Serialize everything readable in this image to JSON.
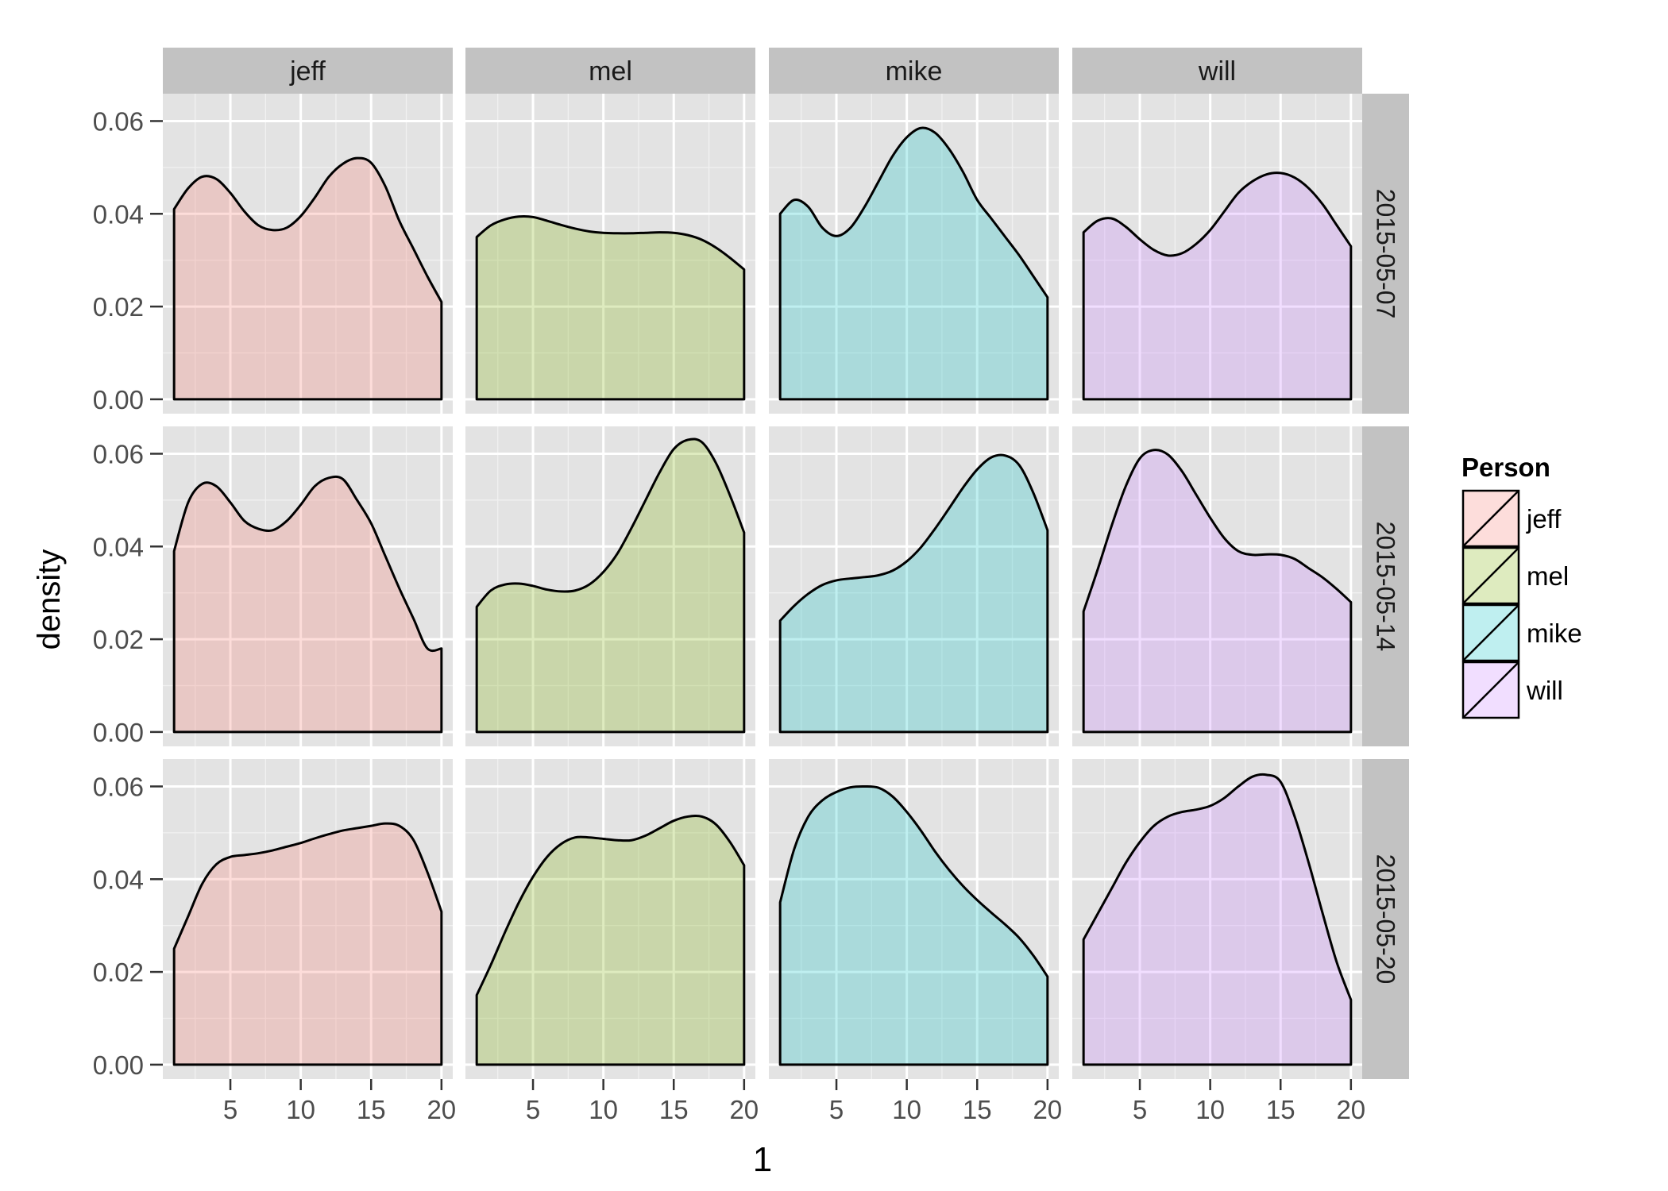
{
  "chart_data": {
    "type": "area",
    "chart_kind": "faceted density plot",
    "xlabel": "1",
    "ylabel": "density",
    "xlim": [
      0.2,
      20.8
    ],
    "ylim": [
      -0.0031,
      0.0659
    ],
    "xticks": [
      5,
      10,
      15,
      20
    ],
    "xtick_labels": [
      "5",
      "10",
      "15",
      "20"
    ],
    "yticks": [
      0,
      0.02,
      0.04,
      0.06
    ],
    "ytick_labels": [
      "0.00",
      "0.02",
      "0.04",
      "0.06"
    ],
    "grid": true,
    "column_facets": [
      "jeff",
      "mel",
      "mike",
      "will"
    ],
    "row_facets": [
      "2015-05-07",
      "2015-05-14",
      "2015-05-20"
    ],
    "legend": {
      "title": "Person",
      "position": "right",
      "items": [
        {
          "label": "jeff",
          "color": "#f8766d"
        },
        {
          "label": "mel",
          "color": "#7cae00"
        },
        {
          "label": "mike",
          "color": "#00bfc4"
        },
        {
          "label": "will",
          "color": "#c77cff"
        }
      ]
    },
    "fill_alpha": 0.25,
    "panels": [
      {
        "person": "jeff",
        "date": "2015-05-07",
        "x": [
          1,
          2,
          3,
          4,
          5,
          6,
          7,
          8,
          9,
          10,
          11,
          12,
          13,
          14,
          15,
          16,
          17,
          18,
          19,
          20
        ],
        "y": [
          0.041,
          0.0455,
          0.048,
          0.0475,
          0.0445,
          0.0405,
          0.0375,
          0.0365,
          0.037,
          0.0395,
          0.0435,
          0.048,
          0.0508,
          0.052,
          0.051,
          0.046,
          0.0385,
          0.0325,
          0.0265,
          0.021
        ]
      },
      {
        "person": "mel",
        "date": "2015-05-07",
        "x": [
          1,
          2,
          3,
          4,
          5,
          6,
          7,
          8,
          9,
          10,
          11,
          12,
          13,
          14,
          15,
          16,
          17,
          18,
          19,
          20
        ],
        "y": [
          0.035,
          0.0375,
          0.0388,
          0.0394,
          0.0393,
          0.0385,
          0.0376,
          0.0368,
          0.0362,
          0.0359,
          0.0358,
          0.0358,
          0.0359,
          0.036,
          0.0359,
          0.0354,
          0.0344,
          0.0327,
          0.0305,
          0.028
        ]
      },
      {
        "person": "mike",
        "date": "2015-05-07",
        "x": [
          1,
          2,
          3,
          4,
          5,
          6,
          7,
          8,
          9,
          10,
          11,
          12,
          13,
          14,
          15,
          16,
          17,
          18,
          19,
          20
        ],
        "y": [
          0.04,
          0.043,
          0.0415,
          0.037,
          0.0352,
          0.037,
          0.0415,
          0.047,
          0.0525,
          0.0565,
          0.0585,
          0.0575,
          0.054,
          0.049,
          0.043,
          0.039,
          0.035,
          0.031,
          0.0265,
          0.022
        ]
      },
      {
        "person": "will",
        "date": "2015-05-07",
        "x": [
          1,
          2,
          3,
          4,
          5,
          6,
          7,
          8,
          9,
          10,
          11,
          12,
          13,
          14,
          15,
          16,
          17,
          18,
          19,
          20
        ],
        "y": [
          0.036,
          0.0385,
          0.039,
          0.0372,
          0.0345,
          0.0322,
          0.031,
          0.0315,
          0.0335,
          0.0365,
          0.0405,
          0.0445,
          0.047,
          0.0485,
          0.0488,
          0.0478,
          0.0455,
          0.042,
          0.0375,
          0.033
        ]
      },
      {
        "person": "jeff",
        "date": "2015-05-14",
        "x": [
          1,
          2,
          3,
          4,
          5,
          6,
          7,
          8,
          9,
          10,
          11,
          12,
          13,
          14,
          15,
          16,
          17,
          18,
          19,
          20
        ],
        "y": [
          0.039,
          0.0495,
          0.0535,
          0.053,
          0.0495,
          0.0455,
          0.0438,
          0.0435,
          0.0455,
          0.049,
          0.053,
          0.0548,
          0.0545,
          0.05,
          0.045,
          0.038,
          0.031,
          0.0245,
          0.018,
          0.018
        ]
      },
      {
        "person": "mel",
        "date": "2015-05-14",
        "x": [
          1,
          2,
          3,
          4,
          5,
          6,
          7,
          8,
          9,
          10,
          11,
          12,
          13,
          14,
          15,
          16,
          17,
          18,
          19,
          20
        ],
        "y": [
          0.027,
          0.0305,
          0.0318,
          0.032,
          0.0315,
          0.0307,
          0.0303,
          0.0305,
          0.0318,
          0.0345,
          0.0385,
          0.044,
          0.05,
          0.056,
          0.061,
          0.063,
          0.0625,
          0.058,
          0.051,
          0.043
        ]
      },
      {
        "person": "mike",
        "date": "2015-05-14",
        "x": [
          1,
          2,
          3,
          4,
          5,
          6,
          7,
          8,
          9,
          10,
          11,
          12,
          13,
          14,
          15,
          16,
          17,
          18,
          19,
          20
        ],
        "y": [
          0.024,
          0.0272,
          0.0298,
          0.0317,
          0.0327,
          0.0331,
          0.0334,
          0.0338,
          0.0348,
          0.0368,
          0.0398,
          0.0438,
          0.0482,
          0.0527,
          0.0566,
          0.0592,
          0.0596,
          0.0575,
          0.0515,
          0.0435
        ]
      },
      {
        "person": "will",
        "date": "2015-05-14",
        "x": [
          1,
          2,
          3,
          4,
          5,
          6,
          7,
          8,
          9,
          10,
          11,
          12,
          13,
          14,
          15,
          16,
          17,
          18,
          19,
          20
        ],
        "y": [
          0.026,
          0.035,
          0.0445,
          0.053,
          0.059,
          0.0608,
          0.0598,
          0.0562,
          0.0512,
          0.0462,
          0.0418,
          0.039,
          0.0382,
          0.0383,
          0.0382,
          0.0373,
          0.0353,
          0.0333,
          0.0308,
          0.028
        ]
      },
      {
        "person": "jeff",
        "date": "2015-05-20",
        "x": [
          1,
          2,
          3,
          4,
          5,
          6,
          7,
          8,
          9,
          10,
          11,
          12,
          13,
          14,
          15,
          16,
          17,
          18,
          19,
          20
        ],
        "y": [
          0.025,
          0.032,
          0.039,
          0.0432,
          0.0448,
          0.0452,
          0.0456,
          0.0462,
          0.047,
          0.0478,
          0.0488,
          0.0497,
          0.0505,
          0.051,
          0.0515,
          0.052,
          0.0515,
          0.0485,
          0.0415,
          0.033
        ]
      },
      {
        "person": "mel",
        "date": "2015-05-20",
        "x": [
          1,
          2,
          3,
          4,
          5,
          6,
          7,
          8,
          9,
          10,
          11,
          12,
          13,
          14,
          15,
          16,
          17,
          18,
          19,
          20
        ],
        "y": [
          0.015,
          0.0215,
          0.0285,
          0.035,
          0.0405,
          0.0448,
          0.0476,
          0.049,
          0.049,
          0.0487,
          0.0484,
          0.0484,
          0.0494,
          0.051,
          0.0526,
          0.0535,
          0.0535,
          0.0518,
          0.048,
          0.043
        ]
      },
      {
        "person": "mike",
        "date": "2015-05-20",
        "x": [
          1,
          2,
          3,
          4,
          5,
          6,
          7,
          8,
          9,
          10,
          11,
          12,
          13,
          14,
          15,
          16,
          17,
          18,
          19,
          20
        ],
        "y": [
          0.035,
          0.0465,
          0.0535,
          0.057,
          0.0588,
          0.0598,
          0.06,
          0.0597,
          0.0578,
          0.0545,
          0.0505,
          0.046,
          0.042,
          0.0385,
          0.0355,
          0.0328,
          0.0302,
          0.0273,
          0.0235,
          0.019
        ]
      },
      {
        "person": "will",
        "date": "2015-05-20",
        "x": [
          1,
          2,
          3,
          4,
          5,
          6,
          7,
          8,
          9,
          10,
          11,
          12,
          13,
          14,
          15,
          16,
          17,
          18,
          19,
          20
        ],
        "y": [
          0.027,
          0.0325,
          0.038,
          0.0435,
          0.048,
          0.0515,
          0.0535,
          0.0545,
          0.055,
          0.0558,
          0.0575,
          0.06,
          0.0621,
          0.0625,
          0.061,
          0.0535,
          0.0435,
          0.0325,
          0.022,
          0.014
        ]
      }
    ]
  }
}
